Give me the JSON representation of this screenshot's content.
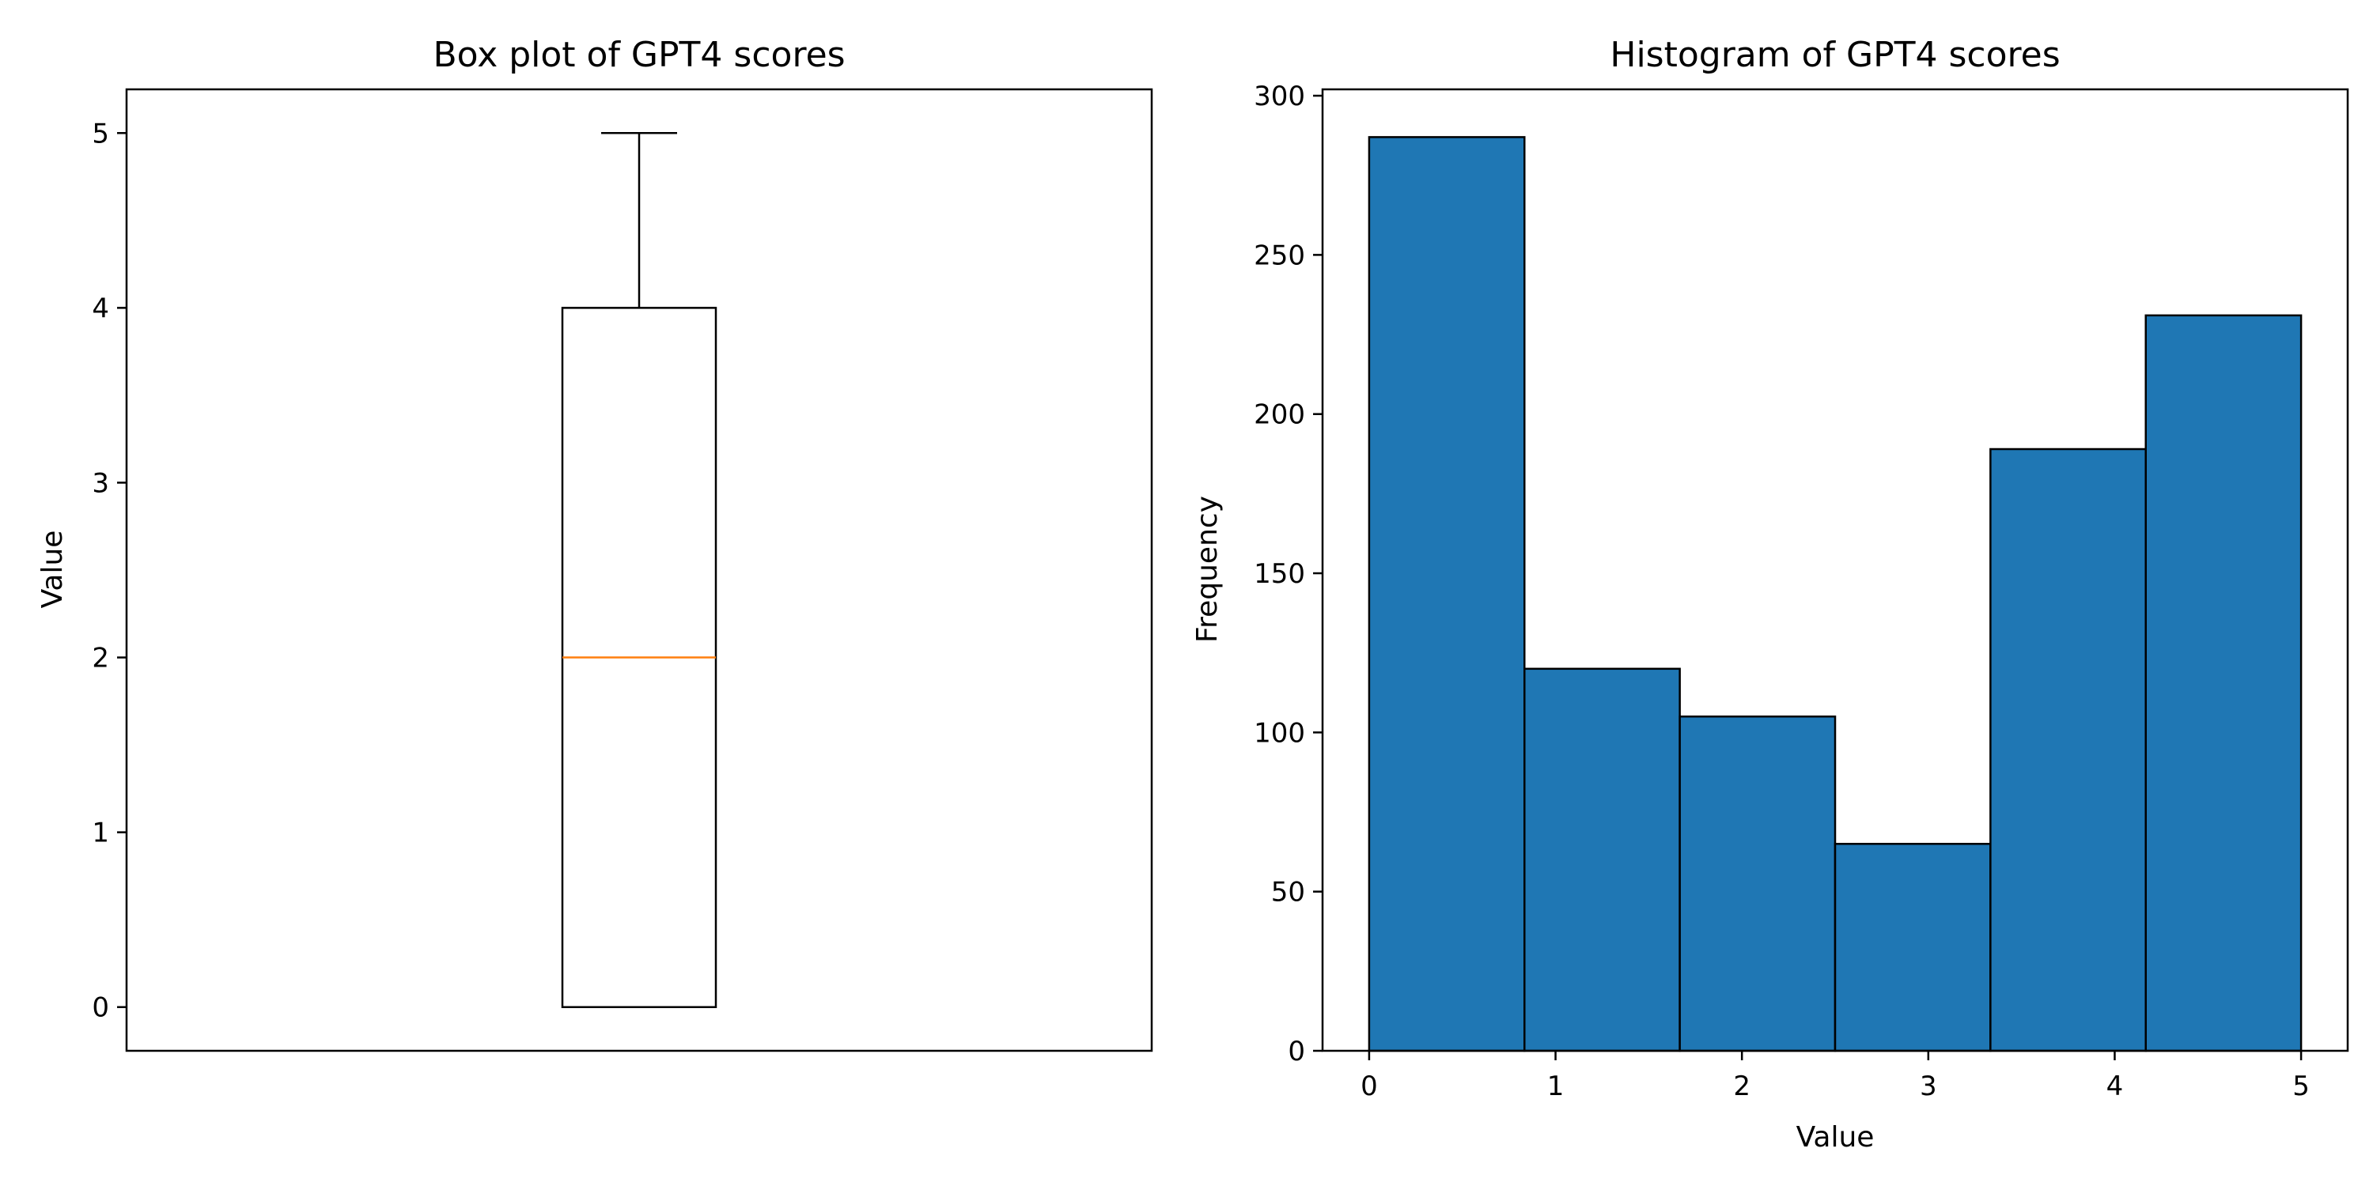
{
  "chart_data": [
    {
      "type": "box",
      "title": "Box plot of GPT4 scores",
      "xlabel": "",
      "ylabel": "Value",
      "ylim": [
        -0.25,
        5.25
      ],
      "yticks": [
        0,
        1,
        2,
        3,
        4,
        5
      ],
      "box": {
        "min": 0,
        "q1": 0,
        "median": 2,
        "q3": 4,
        "max": 5
      },
      "colors": {
        "box": "#000000",
        "median": "#ff7f0e"
      }
    },
    {
      "type": "bar",
      "title": "Histogram of GPT4 scores",
      "xlabel": "Value",
      "ylabel": "Frequency",
      "xlim": [
        -0.25,
        5.25
      ],
      "ylim": [
        0,
        302
      ],
      "xticks": [
        0,
        1,
        2,
        3,
        4,
        5
      ],
      "yticks": [
        0,
        50,
        100,
        150,
        200,
        250,
        300
      ],
      "bins": [
        {
          "start": 0.0,
          "end": 0.8333,
          "count": 287
        },
        {
          "start": 0.8333,
          "end": 1.6667,
          "count": 120
        },
        {
          "start": 1.6667,
          "end": 2.5,
          "count": 105
        },
        {
          "start": 2.5,
          "end": 3.3333,
          "count": 65
        },
        {
          "start": 3.3333,
          "end": 4.1667,
          "count": 189
        },
        {
          "start": 4.1667,
          "end": 5.0,
          "count": 231
        }
      ],
      "colors": {
        "bar": "#1f77b4",
        "edge": "#000000"
      }
    }
  ]
}
